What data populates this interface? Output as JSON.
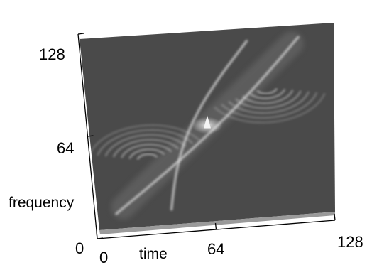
{
  "chart_data": {
    "type": "surface",
    "xlabel": "time",
    "ylabel": "frequency",
    "x_ticks": [
      0,
      64,
      128
    ],
    "y_ticks": [
      0,
      64,
      128
    ],
    "xlim": [
      0,
      128
    ],
    "ylim": [
      0,
      128
    ],
    "grid": false,
    "legend": "none",
    "colors": {
      "surface": "#4a4a4a",
      "highlight": "#e6e6e6",
      "axis": "#000000"
    },
    "features": [
      {
        "kind": "peak",
        "time": 64,
        "frequency": 64
      },
      {
        "kind": "chirp-ridge",
        "from": [
          10,
          10
        ],
        "to": [
          118,
          118
        ]
      },
      {
        "kind": "chirp-ridge",
        "from": [
          40,
          10
        ],
        "to": [
          90,
          118
        ]
      }
    ]
  }
}
